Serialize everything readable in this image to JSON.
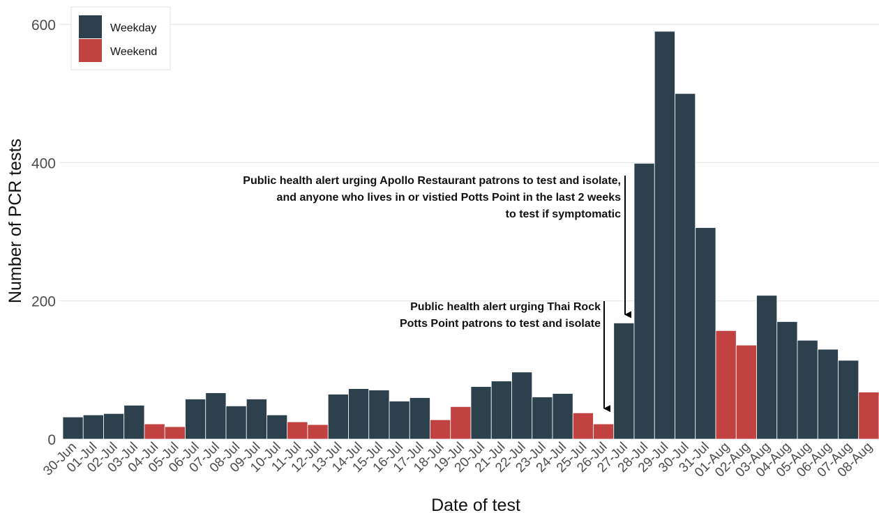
{
  "chart_data": {
    "type": "bar",
    "xlabel": "Date of test",
    "ylabel": "Number of PCR tests",
    "ylim": [
      0,
      600
    ],
    "yticks": [
      0,
      200,
      400,
      600
    ],
    "grid": "horizontal",
    "legend_position": "top-left",
    "legend": [
      {
        "label": "Weekday",
        "color": "#2c414c"
      },
      {
        "label": "Weekend",
        "color": "#c24141"
      }
    ],
    "categories": [
      "30-Jun",
      "01-Jul",
      "02-Jul",
      "03-Jul",
      "04-Jul",
      "05-Jul",
      "06-Jul",
      "07-Jul",
      "08-Jul",
      "09-Jul",
      "10-Jul",
      "11-Jul",
      "12-Jul",
      "13-Jul",
      "14-Jul",
      "15-Jul",
      "16-Jul",
      "17-Jul",
      "18-Jul",
      "19-Jul",
      "20-Jul",
      "21-Jul",
      "22-Jul",
      "23-Jul",
      "24-Jul",
      "25-Jul",
      "26-Jul",
      "27-Jul",
      "28-Jul",
      "29-Jul",
      "30-Jul",
      "31-Jul",
      "01-Aug",
      "02-Aug",
      "03-Aug",
      "04-Aug",
      "05-Aug",
      "06-Aug",
      "07-Aug",
      "08-Aug"
    ],
    "values": [
      32,
      35,
      37,
      49,
      22,
      18,
      58,
      67,
      48,
      58,
      35,
      25,
      21,
      65,
      73,
      71,
      55,
      60,
      28,
      47,
      76,
      84,
      97,
      61,
      66,
      38,
      22,
      168,
      399,
      590,
      500,
      306,
      157,
      136,
      208,
      170,
      143,
      130,
      114,
      68
    ],
    "day_type": [
      "Weekday",
      "Weekday",
      "Weekday",
      "Weekday",
      "Weekend",
      "Weekend",
      "Weekday",
      "Weekday",
      "Weekday",
      "Weekday",
      "Weekday",
      "Weekend",
      "Weekend",
      "Weekday",
      "Weekday",
      "Weekday",
      "Weekday",
      "Weekday",
      "Weekend",
      "Weekend",
      "Weekday",
      "Weekday",
      "Weekday",
      "Weekday",
      "Weekday",
      "Weekend",
      "Weekend",
      "Weekday",
      "Weekday",
      "Weekday",
      "Weekday",
      "Weekday",
      "Weekend",
      "Weekend",
      "Weekday",
      "Weekday",
      "Weekday",
      "Weekday",
      "Weekday",
      "Weekend"
    ],
    "annotations": [
      {
        "lines": [
          "Public health alert urging Thai Rock",
          "Potts Point patrons to test and isolate"
        ],
        "category": "26-Jul",
        "arrow_to_value": 22
      },
      {
        "lines": [
          "Public health alert urging Apollo Restaurant patrons to test and isolate,",
          "and anyone who lives in or vistied Potts Point in the last 2 weeks",
          "to test if symptomatic"
        ],
        "category": "27-Jul",
        "arrow_to_value": 168
      }
    ]
  }
}
